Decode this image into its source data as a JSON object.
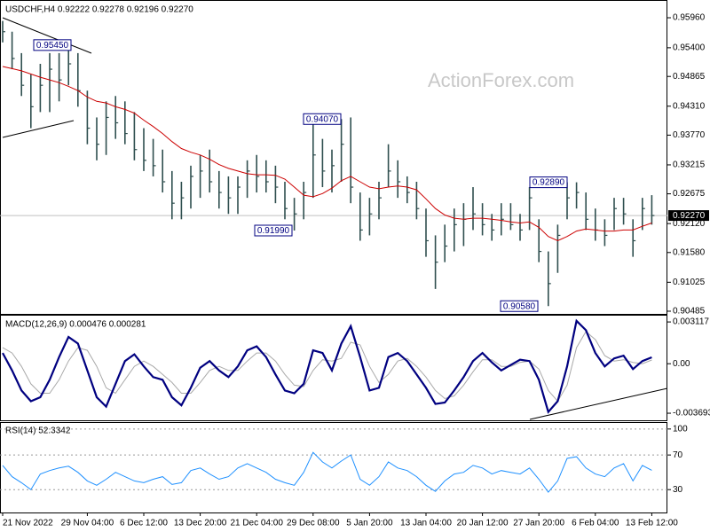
{
  "chart_data": [
    {
      "type": "ohlc",
      "title": "USDCHF,H4 0.92222 0.92278 0.92196 0.92270",
      "watermark": "ActionForex.com",
      "categories": [
        "21 Nov 2022",
        null,
        null,
        null,
        null,
        null,
        null,
        null,
        null,
        "29 Nov 04:00",
        null,
        null,
        null,
        null,
        null,
        "6 Dec 12:00",
        null,
        null,
        null,
        null,
        null,
        "13 Dec 20:00",
        null,
        null,
        null,
        null,
        null,
        "21 Dec 04:00",
        null,
        null,
        null,
        null,
        null,
        "29 Dec 08:00",
        null,
        null,
        null,
        null,
        null,
        "5 Jan 20:00",
        null,
        null,
        null,
        null,
        null,
        "13 Jan 04:00",
        null,
        null,
        null,
        null,
        null,
        "20 Jan 12:00",
        null,
        null,
        null,
        null,
        null,
        "27 Jan 20:00",
        null,
        null,
        null,
        null,
        null,
        "6 Feb 04:00",
        null,
        null,
        null,
        null,
        null,
        "13 Feb 12:00"
      ],
      "high": [
        0.959,
        0.957,
        0.953,
        0.949,
        0.951,
        0.953,
        0.953,
        0.9545,
        0.953,
        0.946,
        0.941,
        0.944,
        0.945,
        0.944,
        0.942,
        0.939,
        0.937,
        0.935,
        0.931,
        0.929,
        0.932,
        0.934,
        0.935,
        0.931,
        0.93,
        0.93,
        0.933,
        0.934,
        0.933,
        0.932,
        0.929,
        0.926,
        0.929,
        0.9407,
        0.937,
        0.935,
        0.9407,
        0.941,
        0.927,
        0.926,
        0.929,
        0.936,
        0.933,
        0.93,
        0.929,
        0.924,
        0.919,
        0.921,
        0.924,
        0.925,
        0.928,
        0.925,
        0.923,
        0.925,
        0.925,
        0.923,
        0.928,
        0.922,
        0.916,
        0.921,
        0.9289,
        0.9289,
        0.927,
        0.924,
        0.922,
        0.926,
        0.926,
        0.922,
        0.926,
        0.9265
      ],
      "low": [
        0.955,
        0.95,
        0.945,
        0.939,
        0.942,
        0.942,
        0.944,
        0.947,
        0.943,
        0.936,
        0.933,
        0.934,
        0.937,
        0.936,
        0.933,
        0.931,
        0.93,
        0.927,
        0.922,
        0.922,
        0.924,
        0.926,
        0.927,
        0.924,
        0.923,
        0.923,
        0.926,
        0.927,
        0.927,
        0.925,
        0.922,
        0.9199,
        0.922,
        0.926,
        0.928,
        0.927,
        0.929,
        0.925,
        0.918,
        0.919,
        0.922,
        0.928,
        0.926,
        0.925,
        0.922,
        0.915,
        0.909,
        0.914,
        0.916,
        0.917,
        0.92,
        0.919,
        0.918,
        0.919,
        0.92,
        0.918,
        0.92,
        0.914,
        0.9058,
        0.912,
        0.922,
        0.924,
        0.92,
        0.918,
        0.917,
        0.92,
        0.921,
        0.915,
        0.92,
        0.921
      ],
      "close": [
        0.957,
        0.952,
        0.947,
        0.943,
        0.947,
        0.95,
        0.948,
        0.951,
        0.946,
        0.939,
        0.936,
        0.941,
        0.94,
        0.938,
        0.935,
        0.933,
        0.932,
        0.929,
        0.925,
        0.926,
        0.93,
        0.931,
        0.929,
        0.927,
        0.926,
        0.928,
        0.931,
        0.93,
        0.929,
        0.928,
        0.924,
        0.923,
        0.927,
        0.934,
        0.931,
        0.932,
        0.936,
        0.928,
        0.92,
        0.923,
        0.926,
        0.931,
        0.929,
        0.927,
        0.924,
        0.918,
        0.914,
        0.917,
        0.921,
        0.922,
        0.923,
        0.921,
        0.92,
        0.922,
        0.921,
        0.92,
        0.926,
        0.916,
        0.91,
        0.919,
        0.926,
        0.927,
        0.922,
        0.92,
        0.919,
        0.924,
        0.923,
        0.918,
        0.924,
        0.9227
      ],
      "color": "#2f4f4f",
      "ma": {
        "color": "#cc0000",
        "values": [
          0.9505,
          0.9501,
          0.9497,
          0.9491,
          0.9485,
          0.948,
          0.9475,
          0.9468,
          0.946,
          0.9448,
          0.944,
          0.9437,
          0.943,
          0.9425,
          0.9418,
          0.9405,
          0.9393,
          0.938,
          0.9365,
          0.9352,
          0.9345,
          0.934,
          0.9332,
          0.9322,
          0.9315,
          0.931,
          0.9305,
          0.9303,
          0.9303,
          0.9302,
          0.9295,
          0.928,
          0.9265,
          0.9262,
          0.9268,
          0.9278,
          0.9292,
          0.93,
          0.929,
          0.928,
          0.9277,
          0.928,
          0.9282,
          0.928,
          0.9275,
          0.9258,
          0.924,
          0.9228,
          0.9222,
          0.922,
          0.9222,
          0.9222,
          0.922,
          0.9218,
          0.9215,
          0.9213,
          0.9215,
          0.9205,
          0.9188,
          0.918,
          0.9188,
          0.9198,
          0.9202,
          0.92,
          0.9198,
          0.9198,
          0.92,
          0.92,
          0.9207,
          0.9213
        ]
      },
      "last": {
        "value": 0.9227,
        "label": "0.92270"
      },
      "annotations": [
        {
          "value": 0.9545,
          "label": "0.95450"
        },
        {
          "value": 0.9407,
          "label": "0.94070"
        },
        {
          "value": 0.9199,
          "label": "0.91990"
        },
        {
          "value": 0.9289,
          "label": "0.92890"
        },
        {
          "value": 0.9058,
          "label": "0.90580"
        }
      ],
      "ylim": [
        0.90435,
        0.96225
      ],
      "yticks": [
        {
          "value": 0.9596,
          "label": "0.95960"
        },
        {
          "value": 0.954,
          "label": "0.95400"
        },
        0.94865,
        {
          "value": 0.9431,
          "label": "0.94310"
        },
        {
          "value": 0.9377,
          "label": "0.93770"
        },
        0.93215,
        0.92675,
        {
          "value": 0.9212,
          "label": "0.92120"
        },
        {
          "value": 0.9158,
          "label": "0.91580"
        },
        0.91025,
        0.90485
      ]
    },
    {
      "type": "macd",
      "title": "MACD(12,26,9) 0.000476 0.000281",
      "series": [
        {
          "color": "#000080",
          "values": [
            0.0008,
            -0.0005,
            -0.002,
            -0.0028,
            -0.0025,
            -0.0012,
            0.0005,
            0.002,
            0.0015,
            -0.0005,
            -0.0025,
            -0.0032,
            -0.0015,
            0.0002,
            0.0007,
            -0.0002,
            -0.001,
            -0.0012,
            -0.0025,
            -0.0031,
            -0.0018,
            -0.0003,
            0.0002,
            -0.0005,
            -0.001,
            -0.0002,
            0.001,
            0.0013,
            0.0005,
            -0.0008,
            -0.002,
            -0.0022,
            -0.0015,
            0.001,
            0.0008,
            -0.0005,
            0.0015,
            0.0028,
            0.0005,
            -0.002,
            -0.0018,
            0.0005,
            0.0008,
            0.0002,
            -0.0008,
            -0.0018,
            -0.003,
            -0.0029,
            -0.002,
            -0.001,
            0.0002,
            0.0008,
            0.0001,
            -0.0005,
            -0.0001,
            0.0003,
            0.0002,
            -0.0012,
            -0.0036,
            -0.0028,
            -0.0002,
            0.0032,
            0.0025,
            0.0008,
            -0.0002,
            0.0004,
            0.0006,
            -0.0004,
            0.0002,
            0.000476
          ]
        },
        {
          "color": "#a9a9a9",
          "values": [
            0.0012,
            0.0008,
            -0.0002,
            -0.0015,
            -0.0022,
            -0.0022,
            -0.0012,
            0.0002,
            0.0012,
            0.001,
            -0.0002,
            -0.0018,
            -0.0022,
            -0.0012,
            -0.0002,
            0.0002,
            -0.0002,
            -0.0008,
            -0.0014,
            -0.0022,
            -0.0022,
            -0.0014,
            -0.0005,
            -0.0002,
            -0.0005,
            -0.0005,
            0.0002,
            0.0008,
            0.0008,
            0.0002,
            -0.0008,
            -0.0016,
            -0.0017,
            -0.0005,
            0.0003,
            0.0002,
            0.0004,
            0.0016,
            0.0014,
            -0.0002,
            -0.0014,
            -0.0008,
            0.0002,
            0.0004,
            -0.0002,
            -0.001,
            -0.002,
            -0.0026,
            -0.0024,
            -0.0016,
            -0.0006,
            0.0003,
            0.0003,
            -0.0002,
            -0.0002,
            0.0001,
            0.0002,
            -0.0004,
            -0.002,
            -0.0028,
            -0.0016,
            0.0012,
            0.0024,
            0.0018,
            0.0006,
            0.0002,
            0.0003,
            0.0001,
            0,
            0.000281
          ]
        }
      ],
      "ylim": [
        -0.00422,
        0.00352
      ],
      "yticks": [
        0.003117,
        {
          "value": 0,
          "label": "0.00"
        },
        -0.003693
      ]
    },
    {
      "type": "rsi",
      "title": "RSI(14) 52.3342",
      "values": [
        58,
        45,
        38,
        30,
        48,
        52,
        55,
        57,
        50,
        40,
        35,
        42,
        50,
        45,
        40,
        38,
        42,
        45,
        36,
        38,
        52,
        55,
        48,
        42,
        45,
        55,
        60,
        55,
        50,
        42,
        38,
        35,
        50,
        73,
        62,
        55,
        63,
        70,
        42,
        35,
        45,
        62,
        55,
        52,
        45,
        35,
        28,
        40,
        48,
        50,
        58,
        55,
        48,
        52,
        50,
        48,
        55,
        42,
        27,
        40,
        66,
        68,
        55,
        48,
        45,
        55,
        60,
        40,
        58,
        52.3342
      ],
      "color": "#1e90ff",
      "ylim": [
        3.6,
        107
      ],
      "yticks": [
        100,
        70,
        30
      ],
      "grid": true
    }
  ]
}
